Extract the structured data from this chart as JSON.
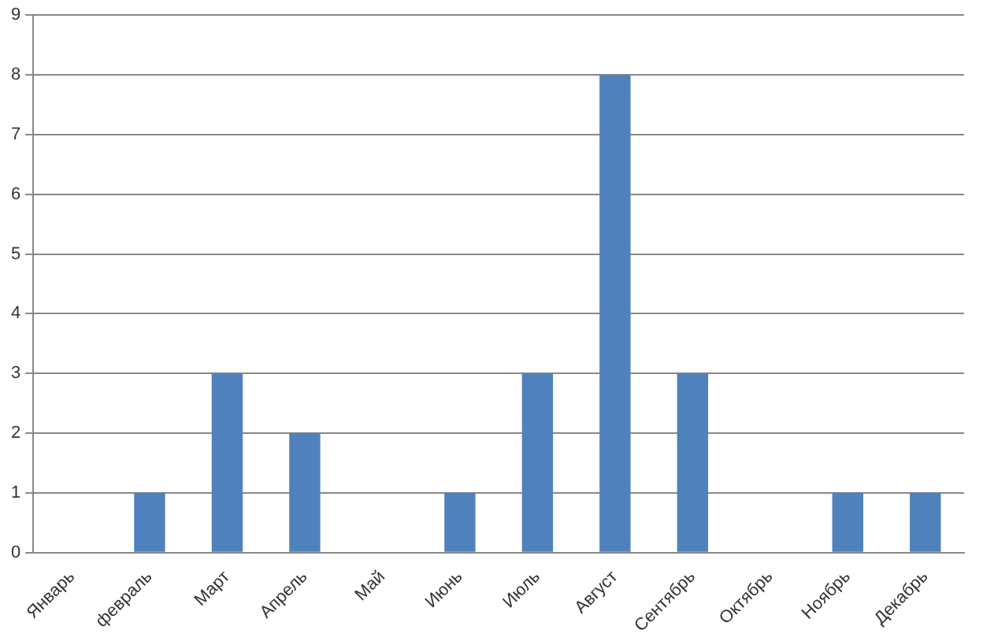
{
  "chart_data": {
    "type": "bar",
    "categories": [
      "Январь",
      "февраль",
      "Март",
      "Апрель",
      "Май",
      "Июнь",
      "Июль",
      "Август",
      "Сентябрь",
      "Октябрь",
      "Ноябрь",
      "Декабрь"
    ],
    "values": [
      0,
      1,
      3,
      2,
      0,
      1,
      3,
      8,
      3,
      0,
      1,
      1
    ],
    "color": "#4f81bd",
    "ylim": [
      0,
      9
    ],
    "yticks": [
      0,
      1,
      2,
      3,
      4,
      5,
      6,
      7,
      8,
      9
    ],
    "grid": "y",
    "legend": false
  }
}
